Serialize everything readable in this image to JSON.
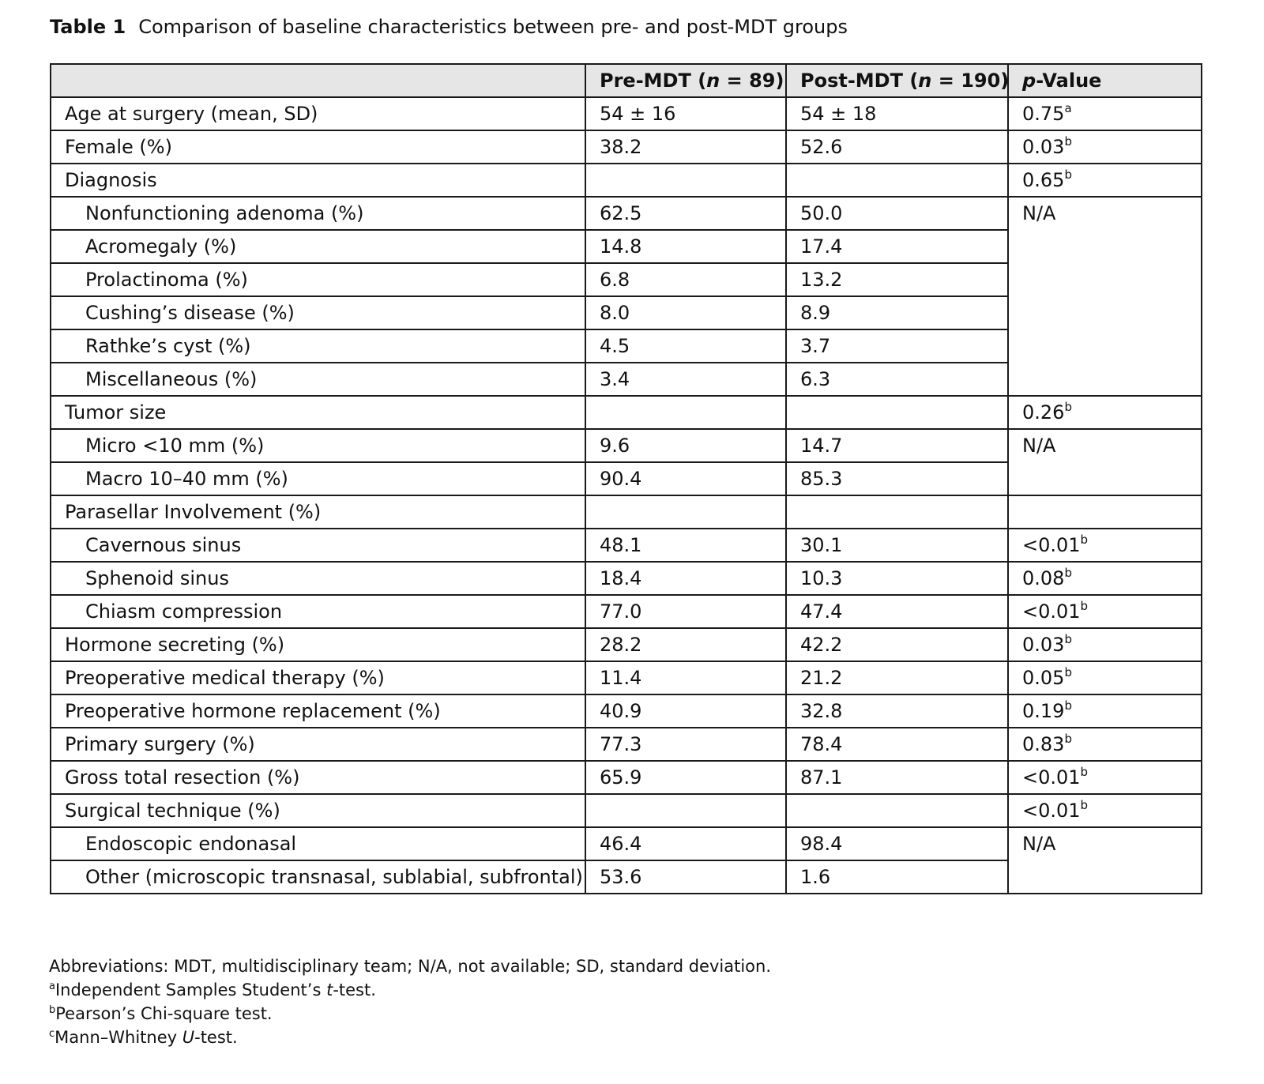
{
  "caption": {
    "label": "Table 1",
    "text": "Comparison of baseline characteristics between pre- and post-MDT groups"
  },
  "table": {
    "header": {
      "col0": "",
      "col1_pre": "Pre-MDT (",
      "col1_n": "n",
      "col1_post": " = 89)",
      "col2_pre": "Post-MDT (",
      "col2_n": "n",
      "col2_post": " = 190)",
      "col3_italic": "p",
      "col3_rest": "-Value"
    },
    "rows": [
      {
        "label": "Age at surgery (mean, SD)",
        "pre": "54 ± 16",
        "post": "54 ± 18",
        "p": "0.75",
        "sup": "a"
      },
      {
        "label": "Female (%)",
        "pre": "38.2",
        "post": "52.6",
        "p": "0.03",
        "sup": "b"
      },
      {
        "label": "Diagnosis",
        "pre": "",
        "post": "",
        "p": "0.65",
        "sup": "b"
      },
      {
        "label": "Nonfunctioning adenoma (%)",
        "pre": "62.5",
        "post": "50.0",
        "p": "N/A"
      },
      {
        "label": "Acromegaly (%)",
        "pre": "14.8",
        "post": "17.4"
      },
      {
        "label": "Prolactinoma (%)",
        "pre": "6.8",
        "post": "13.2"
      },
      {
        "label": "Cushing’s disease (%)",
        "pre": "8.0",
        "post": "8.9"
      },
      {
        "label": "Rathke’s cyst (%)",
        "pre": "4.5",
        "post": "3.7"
      },
      {
        "label": "Miscellaneous (%)",
        "pre": "3.4",
        "post": "6.3"
      },
      {
        "label": "Tumor size",
        "pre": "",
        "post": "",
        "p": "0.26",
        "sup": "b"
      },
      {
        "label": "Micro <10 mm (%)",
        "pre": "9.6",
        "post": "14.7",
        "p": "N/A"
      },
      {
        "label": "Macro 10–40 mm (%)",
        "pre": "90.4",
        "post": "85.3"
      },
      {
        "label": "Parasellar Involvement (%)",
        "pre": "",
        "post": "",
        "p": ""
      },
      {
        "label": "Cavernous sinus",
        "pre": "48.1",
        "post": "30.1",
        "p": "<0.01",
        "sup": "b"
      },
      {
        "label": "Sphenoid sinus",
        "pre": "18.4",
        "post": "10.3",
        "p": "0.08",
        "sup": "b"
      },
      {
        "label": "Chiasm compression",
        "pre": "77.0",
        "post": "47.4",
        "p": "<0.01",
        "sup": "b"
      },
      {
        "label": "Hormone secreting (%)",
        "pre": "28.2",
        "post": "42.2",
        "p": "0.03",
        "sup": "b"
      },
      {
        "label": "Preoperative medical therapy (%)",
        "pre": "11.4",
        "post": "21.2",
        "p": "0.05",
        "sup": "b"
      },
      {
        "label": "Preoperative hormone replacement (%)",
        "pre": "40.9",
        "post": "32.8",
        "p": "0.19",
        "sup": "b"
      },
      {
        "label": "Primary surgery (%)",
        "pre": "77.3",
        "post": "78.4",
        "p": "0.83",
        "sup": "b"
      },
      {
        "label": "Gross total resection (%)",
        "pre": "65.9",
        "post": "87.1",
        "p": "<0.01",
        "sup": "b"
      },
      {
        "label": "Surgical technique (%)",
        "pre": "",
        "post": "",
        "p": "<0.01",
        "sup": "b"
      },
      {
        "label": "Endoscopic endonasal",
        "pre": "46.4",
        "post": "98.4",
        "p": "N/A"
      },
      {
        "label": "Other (microscopic transnasal, sublabial, subfrontal)",
        "pre": "53.6",
        "post": "1.6"
      }
    ]
  },
  "footnotes": {
    "abbreviations": "Abbreviations: MDT, multidisciplinary team; N/A, not available; SD, standard deviation.",
    "a_mark": "a",
    "a_pre": "Independent Samples Student’s ",
    "a_italic": "t",
    "a_post": "-test.",
    "b_mark": "b",
    "b_text": "Pearson’s Chi-square test.",
    "c_mark": "c",
    "c_pre": "Mann–Whitney ",
    "c_italic": "U",
    "c_post": "-test."
  }
}
